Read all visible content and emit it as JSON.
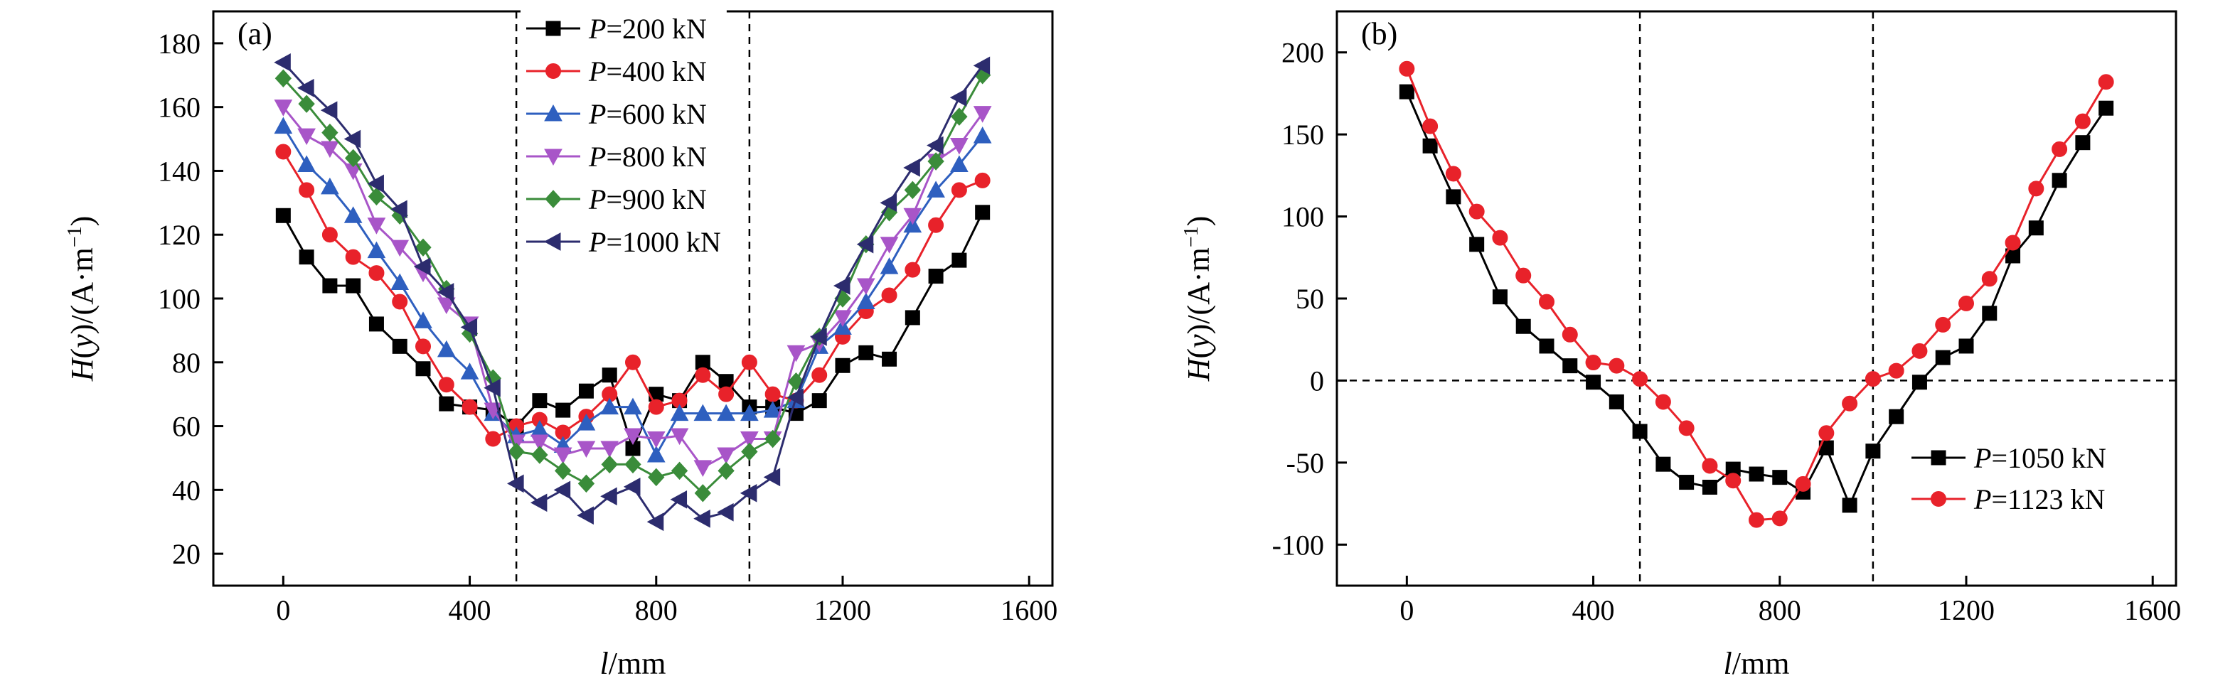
{
  "chart_data": [
    {
      "type": "line",
      "panel_label": "(a)",
      "xlabel": {
        "italic": "l",
        "rest": "/mm"
      },
      "ylabel": {
        "italic1": "H",
        "mid1": "(",
        "italic2": "y",
        "mid2": ")/(A·m",
        "sup": "−1",
        "end": ")"
      },
      "xlim": [
        -150,
        1650
      ],
      "ylim": [
        10,
        190
      ],
      "xticks": [
        0,
        400,
        800,
        1200,
        1600
      ],
      "yticks": [
        20,
        40,
        60,
        80,
        100,
        120,
        140,
        160,
        180
      ],
      "vlines": [
        500,
        1000
      ],
      "hlines": [],
      "legend_position": "top-center",
      "grid": false,
      "series": [
        {
          "name": "P=200 kN",
          "italic_part": "P",
          "rest_part": "=200 kN",
          "color": "#000000",
          "marker": "square",
          "x": [
            0,
            50,
            100,
            150,
            200,
            250,
            300,
            350,
            400,
            450,
            500,
            550,
            600,
            650,
            700,
            750,
            800,
            850,
            900,
            950,
            1000,
            1050,
            1100,
            1150,
            1200,
            1250,
            1300,
            1350,
            1400,
            1450,
            1500
          ],
          "y": [
            126,
            113,
            104,
            104,
            92,
            85,
            78,
            67,
            66,
            65,
            60,
            68,
            65,
            71,
            76,
            53,
            70,
            68,
            80,
            74,
            66,
            66,
            64,
            68,
            79,
            83,
            81,
            94,
            107,
            112,
            127
          ]
        },
        {
          "name": "P=400 kN",
          "italic_part": "P",
          "rest_part": "=400 kN",
          "color": "#e8222a",
          "marker": "circle",
          "x": [
            0,
            50,
            100,
            150,
            200,
            250,
            300,
            350,
            400,
            450,
            500,
            550,
            600,
            650,
            700,
            750,
            800,
            850,
            900,
            950,
            1000,
            1050,
            1100,
            1150,
            1200,
            1250,
            1300,
            1350,
            1400,
            1450,
            1500
          ],
          "y": [
            146,
            134,
            120,
            113,
            108,
            99,
            85,
            73,
            66,
            56,
            60,
            62,
            58,
            63,
            70,
            80,
            66,
            68,
            76,
            70,
            80,
            70,
            68,
            76,
            88,
            96,
            101,
            109,
            123,
            134,
            137
          ]
        },
        {
          "name": "P=600 kN",
          "italic_part": "P",
          "rest_part": "=600 kN",
          "color": "#2e5fbf",
          "marker": "triangle-up",
          "x": [
            0,
            50,
            100,
            150,
            200,
            250,
            300,
            350,
            400,
            450,
            500,
            550,
            600,
            650,
            700,
            750,
            800,
            850,
            900,
            950,
            1000,
            1050,
            1100,
            1150,
            1200,
            1250,
            1300,
            1350,
            1400,
            1450,
            1500
          ],
          "y": [
            154,
            142,
            135,
            126,
            115,
            105,
            93,
            84,
            77,
            64,
            57,
            59,
            54,
            61,
            66,
            66,
            51,
            64,
            64,
            64,
            64,
            65,
            68,
            85,
            91,
            99,
            110,
            123,
            134,
            142,
            151
          ]
        },
        {
          "name": "P=800 kN",
          "italic_part": "P",
          "rest_part": "=800 kN",
          "color": "#a855c8",
          "marker": "triangle-down",
          "x": [
            0,
            50,
            100,
            150,
            200,
            250,
            300,
            350,
            400,
            450,
            500,
            550,
            600,
            650,
            700,
            750,
            800,
            850,
            900,
            950,
            1000,
            1050,
            1100,
            1150,
            1200,
            1250,
            1300,
            1350,
            1400,
            1450,
            1500
          ],
          "y": [
            160,
            151,
            147,
            140,
            123,
            116,
            108,
            98,
            92,
            65,
            55,
            55,
            51,
            53,
            53,
            57,
            56,
            57,
            47,
            51,
            56,
            56,
            83,
            86,
            94,
            104,
            117,
            126,
            143,
            148,
            158
          ]
        },
        {
          "name": "P=900 kN",
          "italic_part": "P",
          "rest_part": "=900 kN",
          "color": "#3a8c3a",
          "marker": "diamond",
          "x": [
            0,
            50,
            100,
            150,
            200,
            250,
            300,
            350,
            400,
            450,
            500,
            550,
            600,
            650,
            700,
            750,
            800,
            850,
            900,
            950,
            1000,
            1050,
            1100,
            1150,
            1200,
            1250,
            1300,
            1350,
            1400,
            1450,
            1500
          ],
          "y": [
            169,
            161,
            152,
            144,
            132,
            126,
            116,
            103,
            89,
            75,
            52,
            51,
            46,
            42,
            48,
            48,
            44,
            46,
            39,
            46,
            52,
            56,
            74,
            88,
            100,
            117,
            127,
            134,
            143,
            157,
            170
          ]
        },
        {
          "name": "P=1000 kN",
          "italic_part": "P",
          "rest_part": "=1000 kN",
          "color": "#2c2c6e",
          "marker": "triangle-left",
          "x": [
            0,
            50,
            100,
            150,
            200,
            250,
            300,
            350,
            400,
            450,
            500,
            550,
            600,
            650,
            700,
            750,
            800,
            850,
            900,
            950,
            1000,
            1050,
            1100,
            1150,
            1200,
            1250,
            1300,
            1350,
            1400,
            1450,
            1500
          ],
          "y": [
            174,
            166,
            159,
            150,
            136,
            128,
            110,
            102,
            91,
            72,
            42,
            36,
            40,
            32,
            38,
            41,
            30,
            37,
            31,
            33,
            39,
            44,
            69,
            88,
            104,
            117,
            130,
            141,
            148,
            163,
            173
          ]
        }
      ]
    },
    {
      "type": "line",
      "panel_label": "(b)",
      "xlabel": {
        "italic": "l",
        "rest": "/mm"
      },
      "ylabel": {
        "italic1": "H",
        "mid1": "(",
        "italic2": "y",
        "mid2": ")/(A·m",
        "sup": "−1",
        "end": ")"
      },
      "xlim": [
        -150,
        1650
      ],
      "ylim": [
        -125,
        225
      ],
      "xticks": [
        0,
        400,
        800,
        1200,
        1600
      ],
      "yticks": [
        -100,
        -50,
        0,
        50,
        100,
        150,
        200
      ],
      "vlines": [
        500,
        1000
      ],
      "hlines": [
        0
      ],
      "legend_position": "bottom-right",
      "grid": false,
      "series": [
        {
          "name": "P=1050 kN",
          "italic_part": "P",
          "rest_part": "=1050 kN",
          "color": "#000000",
          "marker": "square",
          "x": [
            0,
            50,
            100,
            150,
            200,
            250,
            300,
            350,
            400,
            450,
            500,
            550,
            600,
            650,
            700,
            750,
            800,
            850,
            900,
            950,
            1000,
            1050,
            1100,
            1150,
            1200,
            1250,
            1300,
            1350,
            1400,
            1450,
            1500
          ],
          "y": [
            176,
            143,
            112,
            83,
            51,
            33,
            21,
            9,
            -1,
            -13,
            -31,
            -51,
            -62,
            -65,
            -54,
            -57,
            -59,
            -68,
            -41,
            -76,
            -43,
            -22,
            -1,
            14,
            21,
            41,
            76,
            93,
            122,
            145,
            166
          ]
        },
        {
          "name": "P=1123 kN",
          "italic_part": "P",
          "rest_part": "=1123 kN",
          "color": "#e8222a",
          "marker": "circle",
          "x": [
            0,
            50,
            100,
            150,
            200,
            250,
            300,
            350,
            400,
            450,
            500,
            550,
            600,
            650,
            700,
            750,
            800,
            850,
            900,
            950,
            1000,
            1050,
            1100,
            1150,
            1200,
            1250,
            1300,
            1350,
            1400,
            1450,
            1500
          ],
          "y": [
            190,
            155,
            126,
            103,
            87,
            64,
            48,
            28,
            11,
            9,
            1,
            -13,
            -29,
            -52,
            -61,
            -85,
            -84,
            -63,
            -32,
            -14,
            1,
            6,
            18,
            34,
            47,
            62,
            84,
            117,
            141,
            158,
            182
          ]
        }
      ]
    }
  ]
}
